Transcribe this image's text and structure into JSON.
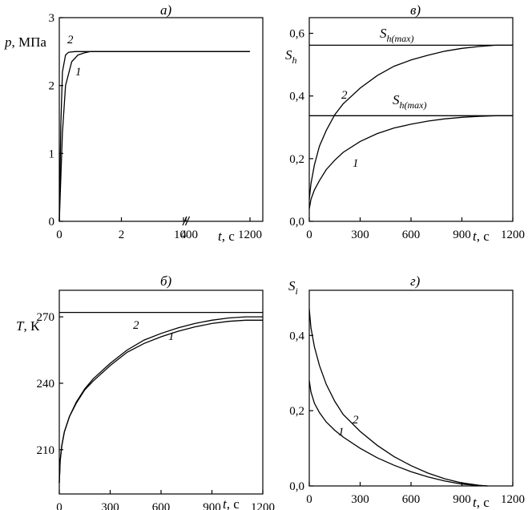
{
  "chart_data": [
    {
      "panel_label": "а)",
      "type": "line",
      "xlabel_var": "t",
      "xlabel_unit": ", с",
      "ylabel_var": "p",
      "ylabel_unit": ", МПа",
      "x_ticks": [
        "0",
        "2",
        "4",
        "1000",
        "1200"
      ],
      "y_ticks": [
        "0",
        "1",
        "2",
        "3"
      ],
      "x_break_at": "1000",
      "ylim": [
        0,
        3
      ],
      "series": [
        {
          "label": "1",
          "x": [
            0,
            0.1,
            0.2,
            0.4,
            0.6,
            0.8,
            1.0,
            2,
            4,
            1000,
            1200
          ],
          "y": [
            0,
            1.3,
            2.0,
            2.35,
            2.45,
            2.48,
            2.5,
            2.5,
            2.5,
            2.5,
            2.5
          ]
        },
        {
          "label": "2",
          "x": [
            0,
            0.05,
            0.1,
            0.2,
            0.3,
            0.5,
            2,
            4,
            1000,
            1200
          ],
          "y": [
            0,
            1.4,
            2.2,
            2.45,
            2.49,
            2.5,
            2.5,
            2.5,
            2.5,
            2.5
          ]
        }
      ]
    },
    {
      "panel_label": "в)",
      "type": "line",
      "xlabel_var": "t",
      "xlabel_unit": ", с",
      "ylabel_var": "S",
      "ylabel_sub": "h",
      "x_ticks": [
        "0",
        "300",
        "600",
        "900",
        "1200"
      ],
      "y_ticks": [
        "0,0",
        "0,2",
        "0,4",
        "0,6"
      ],
      "xlim": [
        0,
        1200
      ],
      "ylim": [
        0,
        0.65
      ],
      "annotation_var": "S",
      "annotation_sub": "h(max)",
      "h_lines": [
        0.562,
        0.337
      ],
      "series": [
        {
          "label": "1",
          "x": [
            0,
            10,
            30,
            60,
            100,
            150,
            200,
            300,
            400,
            500,
            600,
            700,
            800,
            900,
            1000,
            1100,
            1200
          ],
          "y": [
            0.04,
            0.07,
            0.1,
            0.13,
            0.165,
            0.195,
            0.22,
            0.255,
            0.28,
            0.298,
            0.31,
            0.32,
            0.327,
            0.332,
            0.335,
            0.337,
            0.337
          ]
        },
        {
          "label": "2",
          "x": [
            0,
            10,
            30,
            60,
            100,
            150,
            200,
            300,
            400,
            500,
            600,
            700,
            800,
            900,
            1000,
            1100,
            1200
          ],
          "y": [
            0.07,
            0.12,
            0.18,
            0.24,
            0.29,
            0.34,
            0.375,
            0.425,
            0.465,
            0.495,
            0.515,
            0.53,
            0.543,
            0.552,
            0.558,
            0.562,
            0.562
          ]
        }
      ]
    },
    {
      "panel_label": "б)",
      "type": "line",
      "xlabel_var": "t",
      "xlabel_unit": ", с",
      "ylabel_var": "T",
      "ylabel_unit": ", К",
      "x_ticks": [
        "0",
        "300",
        "600",
        "900",
        "1200"
      ],
      "y_ticks": [
        "210",
        "240",
        "270"
      ],
      "xlim": [
        0,
        1200
      ],
      "ylim": [
        190,
        282
      ],
      "h_lines": [
        272
      ],
      "series": [
        {
          "label": "1",
          "x": [
            0,
            5,
            15,
            30,
            60,
            100,
            150,
            200,
            300,
            400,
            500,
            600,
            700,
            800,
            900,
            1000,
            1100,
            1200
          ],
          "y": [
            195,
            205,
            212,
            218,
            225,
            231,
            237,
            241,
            248,
            254,
            258,
            261,
            263.5,
            265.5,
            267,
            268,
            268.5,
            268.5
          ]
        },
        {
          "label": "2",
          "x": [
            0,
            5,
            15,
            30,
            60,
            100,
            150,
            200,
            300,
            400,
            500,
            600,
            700,
            800,
            900,
            1000,
            1100,
            1200
          ],
          "y": [
            195,
            205,
            212,
            218,
            225,
            231.5,
            237.5,
            242,
            249,
            255,
            259.5,
            262.5,
            265,
            267,
            268.5,
            269.5,
            270,
            270
          ]
        }
      ]
    },
    {
      "panel_label": "г)",
      "type": "line",
      "xlabel_var": "t",
      "xlabel_unit": ", с",
      "ylabel_var": "S",
      "ylabel_sub": "i",
      "x_ticks": [
        "0",
        "300",
        "600",
        "900",
        "1200"
      ],
      "y_ticks": [
        "0,0",
        "0,2",
        "0,4"
      ],
      "xlim": [
        0,
        1200
      ],
      "ylim": [
        0,
        0.52
      ],
      "series": [
        {
          "label": "1",
          "x": [
            0,
            10,
            30,
            60,
            100,
            150,
            200,
            300,
            400,
            500,
            600,
            700,
            800,
            900,
            1000,
            1050
          ],
          "y": [
            0.28,
            0.25,
            0.22,
            0.195,
            0.17,
            0.148,
            0.13,
            0.1,
            0.075,
            0.055,
            0.038,
            0.024,
            0.013,
            0.005,
            0.001,
            0
          ]
        },
        {
          "label": "2",
          "x": [
            0,
            10,
            30,
            60,
            100,
            150,
            200,
            300,
            400,
            500,
            600,
            700,
            800,
            900,
            1000,
            1050
          ],
          "y": [
            0.47,
            0.42,
            0.37,
            0.32,
            0.27,
            0.225,
            0.19,
            0.145,
            0.108,
            0.078,
            0.054,
            0.034,
            0.019,
            0.008,
            0.002,
            0
          ]
        }
      ]
    }
  ]
}
